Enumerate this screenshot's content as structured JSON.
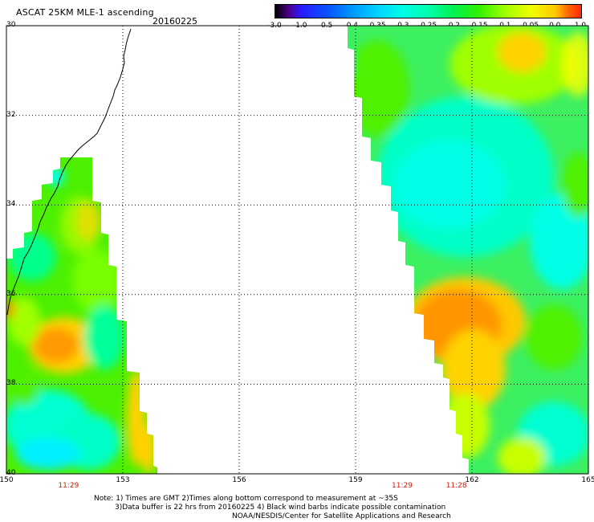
{
  "header": {
    "title": "ASCAT 25KM MLE-1 ascending",
    "date": "20160225"
  },
  "colorbar": {
    "ticks": [
      "-3.0",
      "-1.0",
      "-0.5",
      "-0.4",
      "-0.35",
      "-0.3",
      "-0.25",
      "-0.2",
      "-0.15",
      "-0.1",
      "-0.05",
      "0.0",
      "1.0"
    ],
    "colors": [
      "#000000",
      "#4b0082",
      "#1e1ee6",
      "#0a64ff",
      "#00aaff",
      "#00e6e6",
      "#00ffaa",
      "#00e632",
      "#64ff00",
      "#c8ff00",
      "#ffff00",
      "#ffa000",
      "#ff3c00"
    ]
  },
  "map": {
    "lat_labels": [
      "30",
      "32",
      "34",
      "36",
      "38",
      "40"
    ],
    "lon_labels": [
      "150",
      "153",
      "156",
      "159",
      "162",
      "165"
    ],
    "lat_range": [
      -30,
      -40
    ],
    "lon_range": [
      150,
      165
    ],
    "grid": true,
    "pass_times": [
      {
        "lon": 151.6,
        "time": "11:29"
      },
      {
        "lon": 160.2,
        "time": "11:29"
      },
      {
        "lon": 161.6,
        "time": "11:28"
      }
    ]
  },
  "notes": {
    "line1": "Note: 1) Times are GMT 2)Times along bottom correspond to measurement at ~35S",
    "line2": "3)Data buffer is 22 hrs from 20160225 4) Black wind barbs indicate possible contamination",
    "line3": "NOAA/NESDIS/Center for Satellite Applications and Research"
  }
}
